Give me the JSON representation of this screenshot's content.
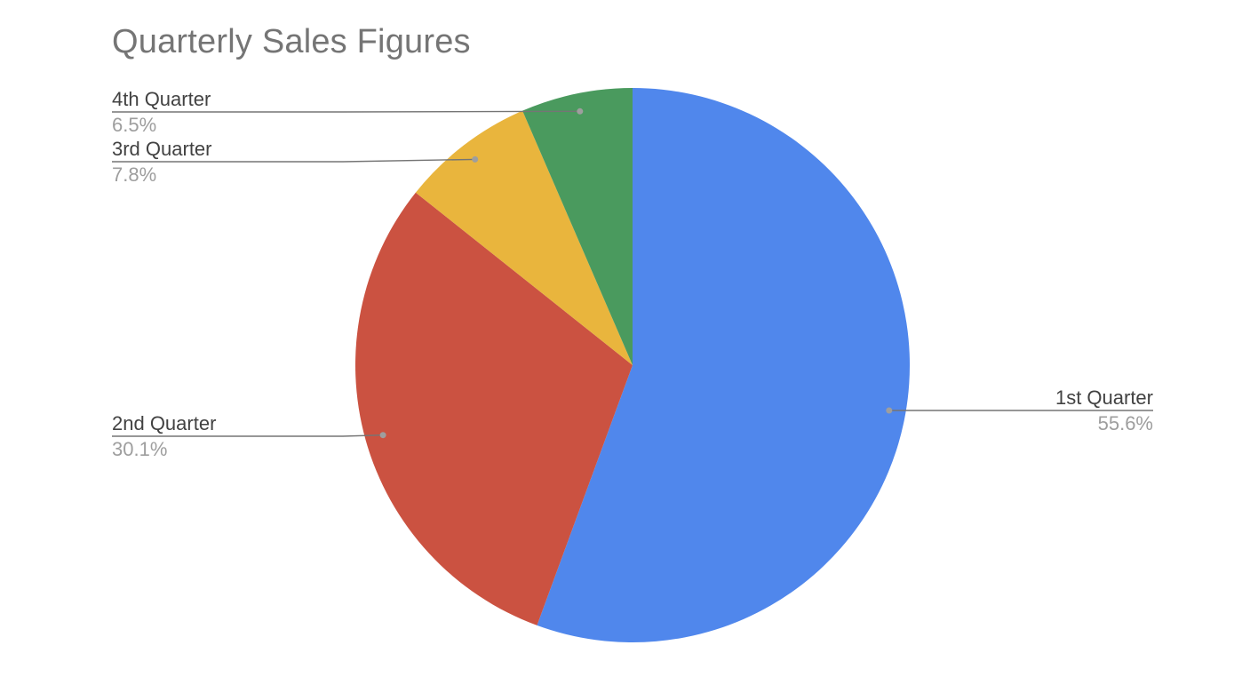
{
  "chart_data": {
    "type": "pie",
    "title": "Quarterly Sales Figures",
    "slices": [
      {
        "label": "1st Quarter",
        "value": 55.6,
        "value_label": "55.6%",
        "color": "#5087EC"
      },
      {
        "label": "2nd Quarter",
        "value": 30.1,
        "value_label": "30.1%",
        "color": "#CB5241"
      },
      {
        "label": "3rd Quarter",
        "value": 7.8,
        "value_label": "7.8%",
        "color": "#E9B53D"
      },
      {
        "label": "4th Quarter",
        "value": 6.5,
        "value_label": "6.5%",
        "color": "#4A9A5E"
      }
    ],
    "start_angle": "top",
    "direction": "clockwise",
    "leader_color": "#757575"
  }
}
